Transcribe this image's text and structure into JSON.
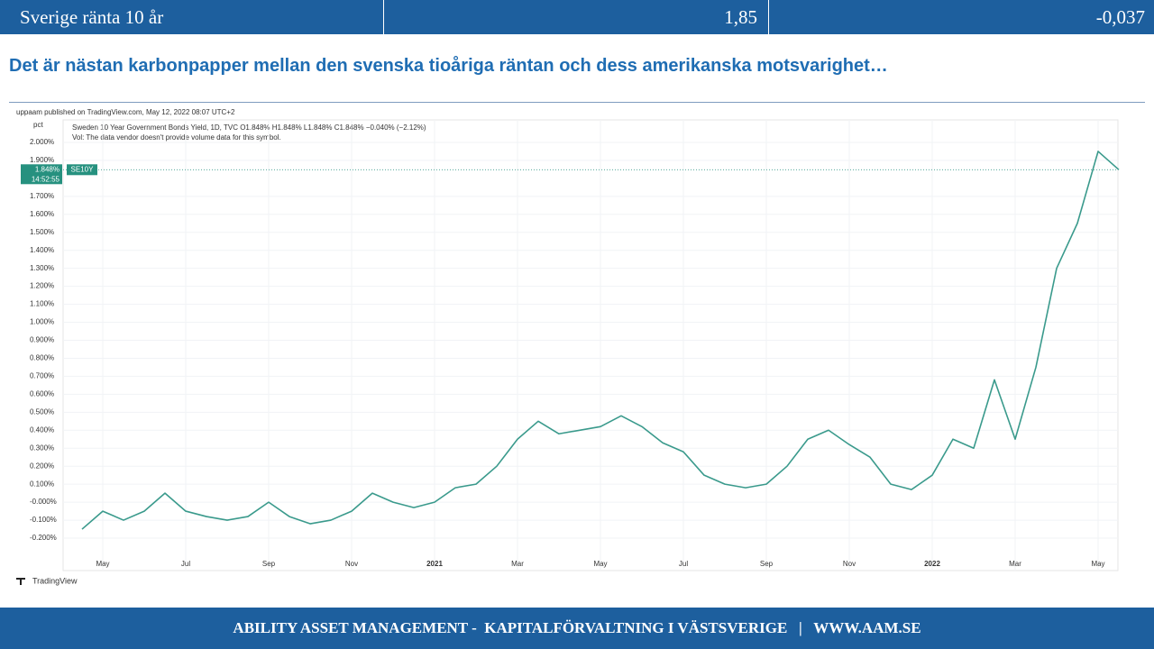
{
  "header": {
    "label": "Sverige ränta 10 år",
    "value": "1,85",
    "change": "-0,037"
  },
  "slide_title": "Det är nästan karbonpapper mellan den svenska tioåriga räntan och dess amerikanska motsvarighet…",
  "chart_data": {
    "type": "line",
    "published": "uppaam published on TradingView.com, May 12, 2022 08:07 UTC+2",
    "unit": "pct",
    "legend_line": "Sweden 10 Year Government Bonds Yield, 1D, TVC  O1.848%  H1.848%  L1.848%  C1.848%  −0.040% (−2.12%)",
    "volume_note": "Vol: The data vendor doesn't provide volume data for this symbol.",
    "symbol": "SE10Y",
    "last_price": {
      "value": 1.848,
      "label": "1.848%"
    },
    "countdown": "14:52:55",
    "brand": "TradingView",
    "categories": [
      null,
      "May",
      null,
      null,
      null,
      "Jul",
      null,
      null,
      null,
      "Sep",
      null,
      null,
      null,
      "Nov",
      null,
      null,
      null,
      "2021",
      null,
      null,
      null,
      "Mar",
      null,
      null,
      null,
      "May",
      null,
      null,
      null,
      "Jul",
      null,
      null,
      null,
      "Sep",
      null,
      null,
      null,
      "Nov",
      null,
      null,
      null,
      "2022",
      null,
      null,
      null,
      "Mar",
      null,
      null,
      null,
      "May",
      null
    ],
    "series": [
      {
        "name": "Sweden 10 Year Government Bonds Yield",
        "color": "#3a9a8c",
        "values": [
          -0.15,
          -0.05,
          -0.1,
          -0.05,
          0.05,
          -0.05,
          -0.08,
          -0.1,
          -0.08,
          0.0,
          -0.08,
          -0.12,
          -0.1,
          -0.05,
          0.05,
          0.0,
          -0.03,
          0.0,
          0.08,
          0.1,
          0.2,
          0.35,
          0.45,
          0.38,
          0.4,
          0.42,
          0.48,
          0.42,
          0.33,
          0.28,
          0.15,
          0.1,
          0.08,
          0.1,
          0.2,
          0.35,
          0.4,
          0.32,
          0.25,
          0.1,
          0.07,
          0.15,
          0.35,
          0.3,
          0.68,
          0.35,
          0.75,
          1.3,
          1.55,
          1.95,
          1.848
        ]
      }
    ],
    "ylim": [
      -0.25,
      2.1
    ],
    "yticks": [
      {
        "value": -0.2,
        "label": "-0.200%"
      },
      {
        "value": -0.1,
        "label": "-0.100%"
      },
      {
        "value": 0,
        "label": "-0.000%"
      },
      {
        "value": 0.1,
        "label": "0.100%"
      },
      {
        "value": 0.2,
        "label": "0.200%"
      },
      {
        "value": 0.3,
        "label": "0.300%"
      },
      {
        "value": 0.4,
        "label": "0.400%"
      },
      {
        "value": 0.5,
        "label": "0.500%"
      },
      {
        "value": 0.6,
        "label": "0.600%"
      },
      {
        "value": 0.7,
        "label": "0.700%"
      },
      {
        "value": 0.8,
        "label": "0.800%"
      },
      {
        "value": 0.9,
        "label": "0.900%"
      },
      {
        "value": 1.0,
        "label": "1.000%"
      },
      {
        "value": 1.1,
        "label": "1.100%"
      },
      {
        "value": 1.2,
        "label": "1.200%"
      },
      {
        "value": 1.3,
        "label": "1.300%"
      },
      {
        "value": 1.4,
        "label": "1.400%"
      },
      {
        "value": 1.5,
        "label": "1.500%"
      },
      {
        "value": 1.6,
        "label": "1.600%"
      },
      {
        "value": 1.7,
        "label": "1.700%"
      },
      {
        "value": 1.9,
        "label": "1.900%"
      },
      {
        "value": 2.0,
        "label": "2.000%"
      }
    ],
    "grid": true
  },
  "footer": "ABILITY ASSET MANAGEMENT -  KAPITALFÖRVALTNING I VÄSTSVERIGE   |   WWW.AAM.SE"
}
